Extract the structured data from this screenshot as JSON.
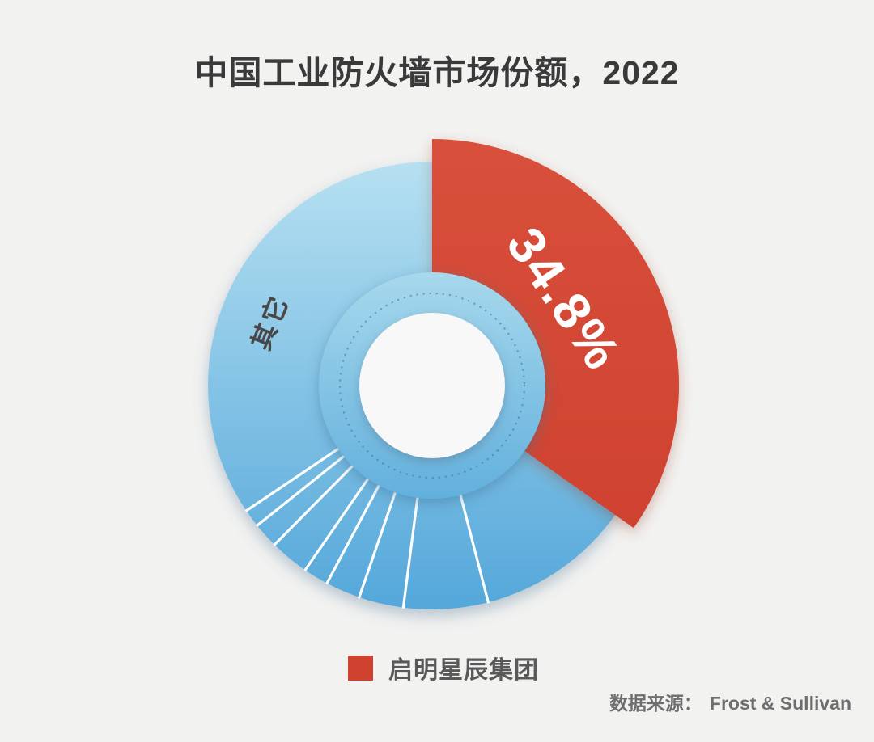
{
  "title": "中国工业防火墙市场份额，2022",
  "source_label": "数据来源：",
  "colors": {
    "background": "#f2f2f1",
    "title_text": "#3a3a3a",
    "red": "#cf4230",
    "red_light": "#d8503b",
    "blue_top": "#b6e0f1",
    "blue_bottom": "#54a7da",
    "hub_top": "#a7d8ec",
    "hub_bottom": "#62b0dd",
    "dotted_ring": "#2e6e96",
    "inner_circle": "#f8f8f8",
    "slice_divider": "#ffffff",
    "label_on_red": "#ffffff",
    "label_on_blue": "#484848",
    "legend_text": "#595959",
    "source_text": "#6e6e6e"
  },
  "chart_data": {
    "type": "pie",
    "donut": true,
    "title": "中国工业防火墙市场份额，2022",
    "unit": "percent",
    "start_angle_deg": 0,
    "clockwise": true,
    "series": [
      {
        "name": "启明星辰集团",
        "value": 34.8,
        "label": "34.8%",
        "color": "#cf4230"
      },
      {
        "name": "其它",
        "value": 65.2,
        "label": "其它",
        "color_top": "#b6e0f1",
        "color_bottom": "#54a7da",
        "note": "blue remainder subdivided by thin white radial divider lines into unlabeled sub-slices"
      }
    ],
    "others_divider_angles_deg": [
      165.5,
      187.4,
      199,
      208,
      214.5,
      224.7,
      231.3,
      236
    ],
    "legend": [
      {
        "label": "启明星辰集团",
        "color": "#cf4230"
      }
    ],
    "source": "Frost & Sullivan"
  }
}
